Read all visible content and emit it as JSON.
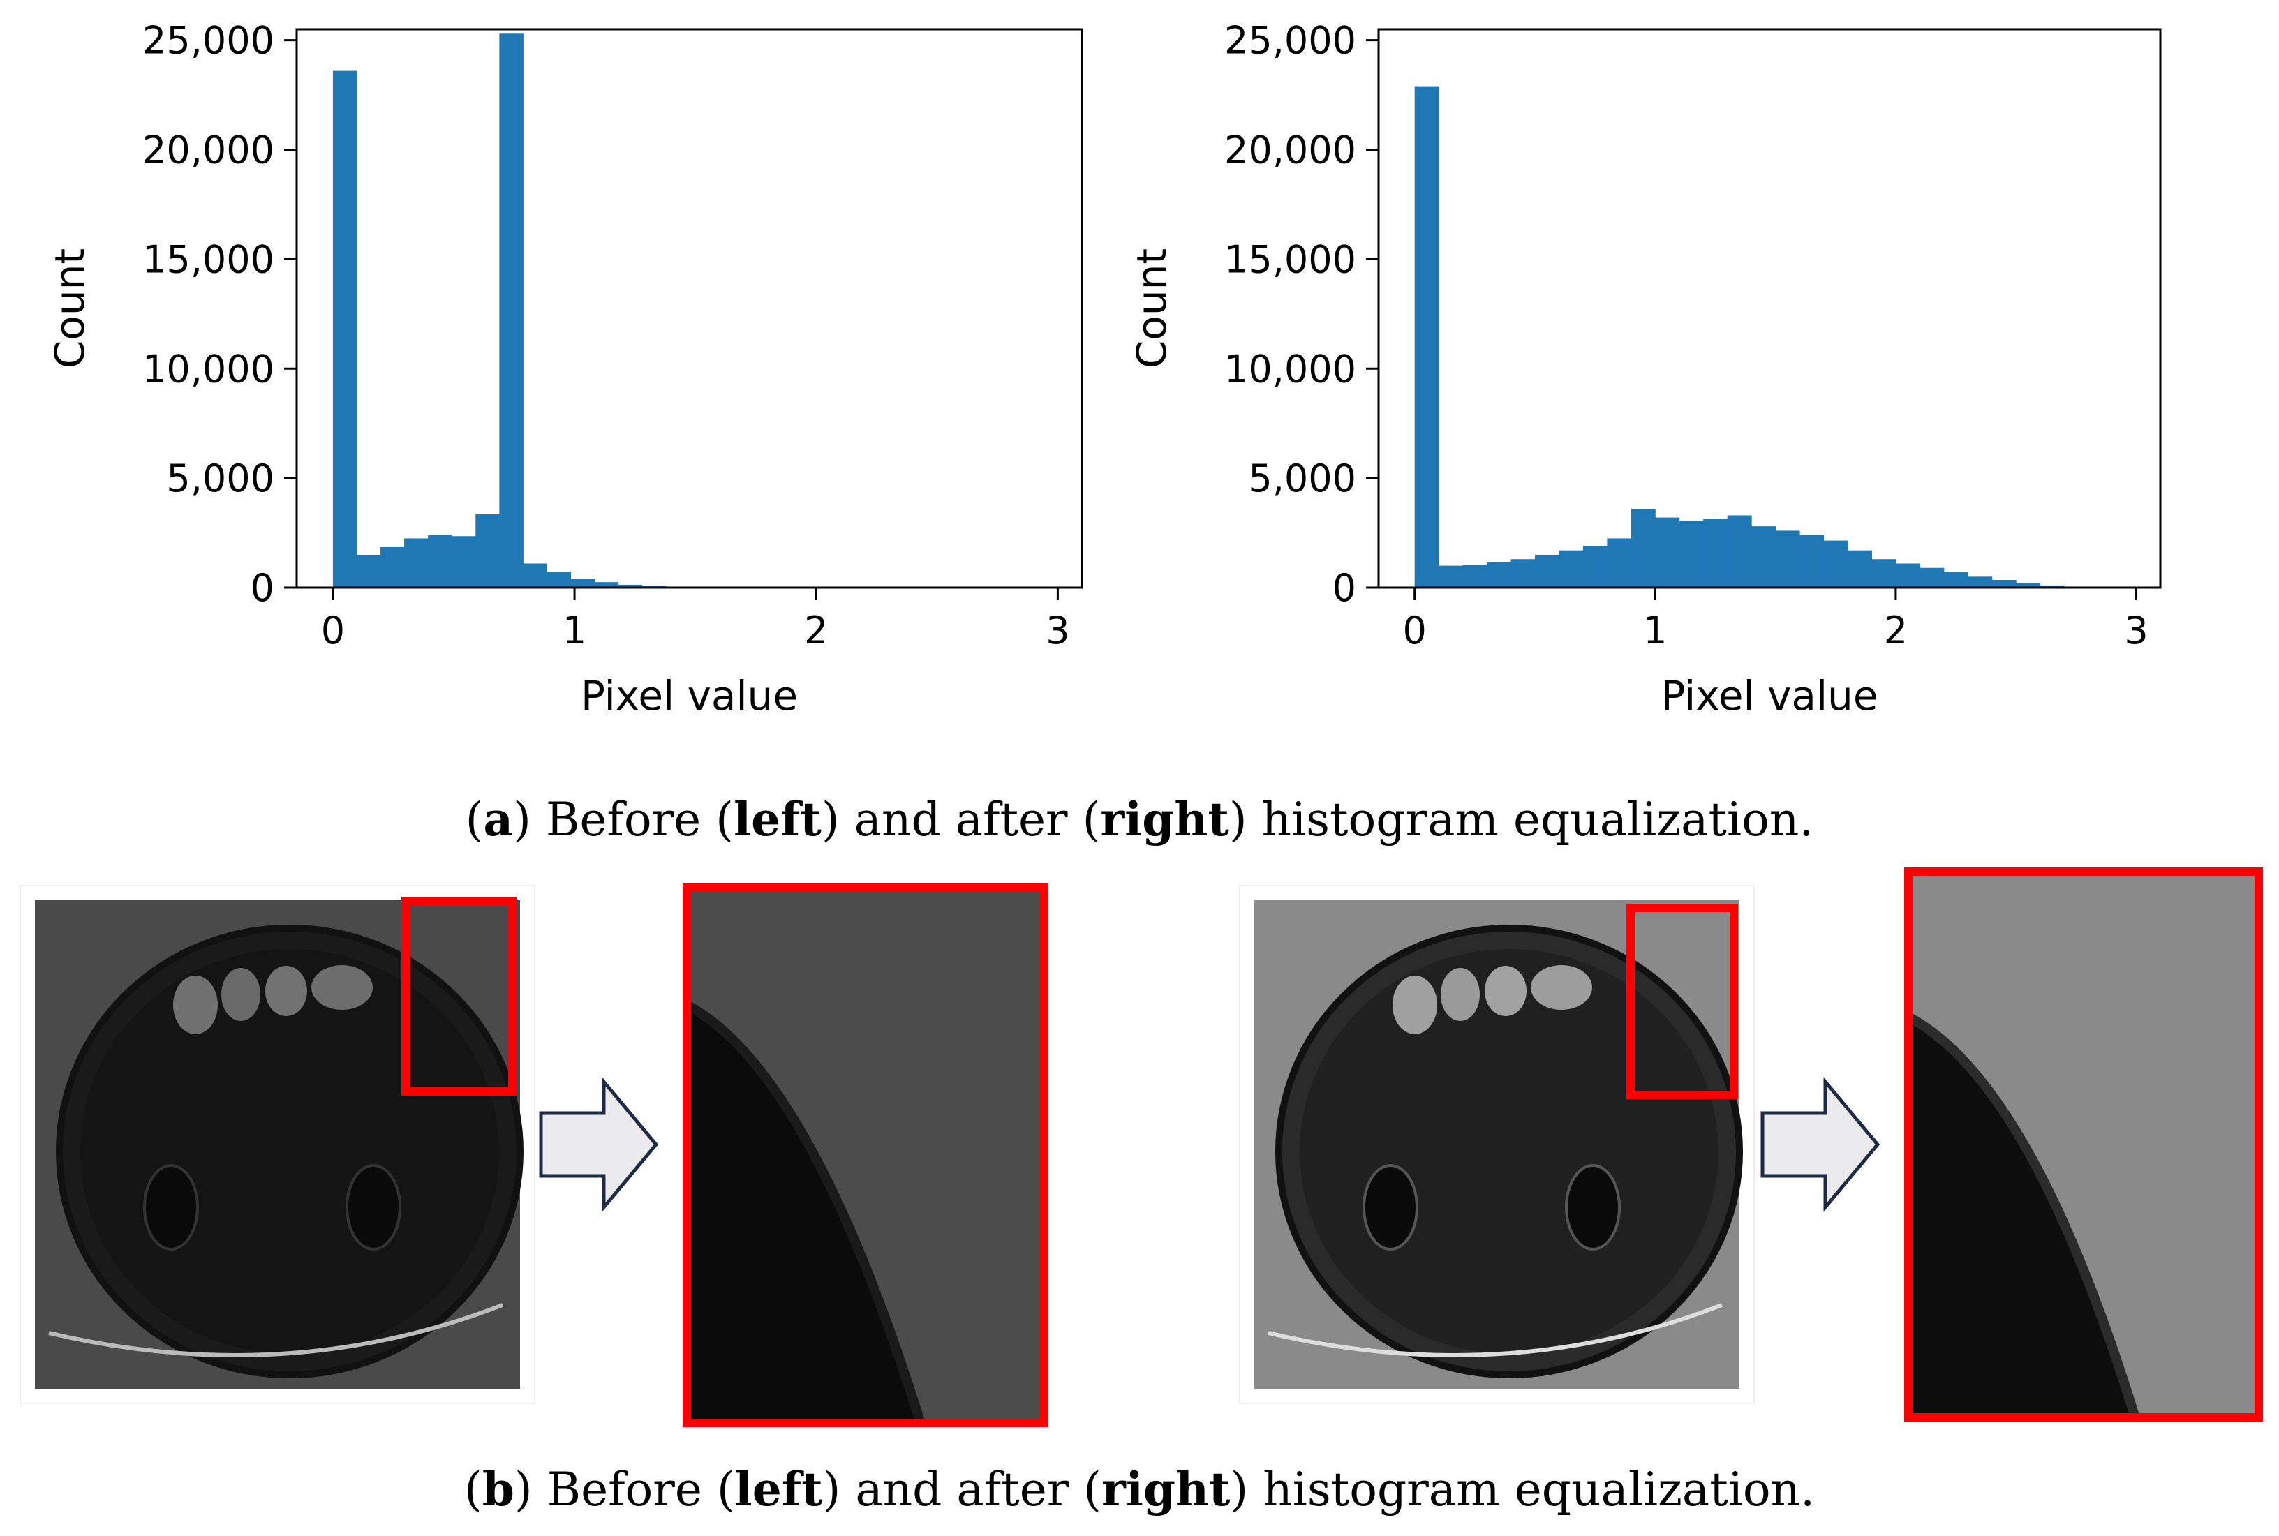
{
  "chart_data": [
    {
      "type": "bar",
      "xlabel": "Pixel value",
      "ylabel": "Count",
      "xlim": [
        -0.15,
        3.1
      ],
      "ylim": [
        0,
        25500
      ],
      "xticks": [
        0,
        1,
        2,
        3
      ],
      "yticks": [
        0,
        5000,
        10000,
        15000,
        20000,
        25000
      ],
      "ytick_labels": [
        "0",
        "5,000",
        "10,000",
        "15,000",
        "20,000",
        "25,000"
      ],
      "bin_start": 0.0,
      "bin_width": 0.0984,
      "values": [
        23600,
        1500,
        1850,
        2250,
        2400,
        2350,
        3350,
        25300,
        1100,
        700,
        400,
        250,
        130,
        80,
        40,
        0,
        0,
        0,
        0,
        0,
        0,
        0,
        0,
        0,
        0,
        0,
        0,
        0,
        0,
        0
      ],
      "color": "#1f77b4",
      "grid": false
    },
    {
      "type": "bar",
      "xlabel": "Pixel value",
      "ylabel": "Count",
      "xlim": [
        -0.15,
        3.1
      ],
      "ylim": [
        0,
        25500
      ],
      "xticks": [
        0,
        1,
        2,
        3
      ],
      "yticks": [
        0,
        5000,
        10000,
        15000,
        20000,
        25000
      ],
      "ytick_labels": [
        "0",
        "5,000",
        "10,000",
        "15,000",
        "20,000",
        "25,000"
      ],
      "bin_start": 0.0,
      "bin_width": 0.1,
      "values": [
        22900,
        1000,
        1050,
        1150,
        1300,
        1500,
        1700,
        1900,
        2250,
        3600,
        3200,
        3050,
        3150,
        3300,
        2800,
        2600,
        2400,
        2150,
        1700,
        1300,
        1100,
        900,
        700,
        500,
        350,
        200,
        100,
        0,
        0,
        0
      ],
      "color": "#1f77b4",
      "grid": false
    }
  ],
  "captions": {
    "a": {
      "open": "(",
      "letter": "a",
      "t1": ") Before (",
      "b1": "left",
      "t2": ") and after (",
      "b2": "right",
      "t3": ") histogram equalization."
    },
    "b": {
      "open": "(",
      "letter": "b",
      "t1": ") Before (",
      "b1": "left",
      "t2": ") and after (",
      "b2": "right",
      "t3": ") histogram equalization."
    }
  },
  "colors": {
    "highlight_box": "#ff0000",
    "arrow_fill": "#ebebed",
    "arrow_stroke": "#1f2a44"
  }
}
